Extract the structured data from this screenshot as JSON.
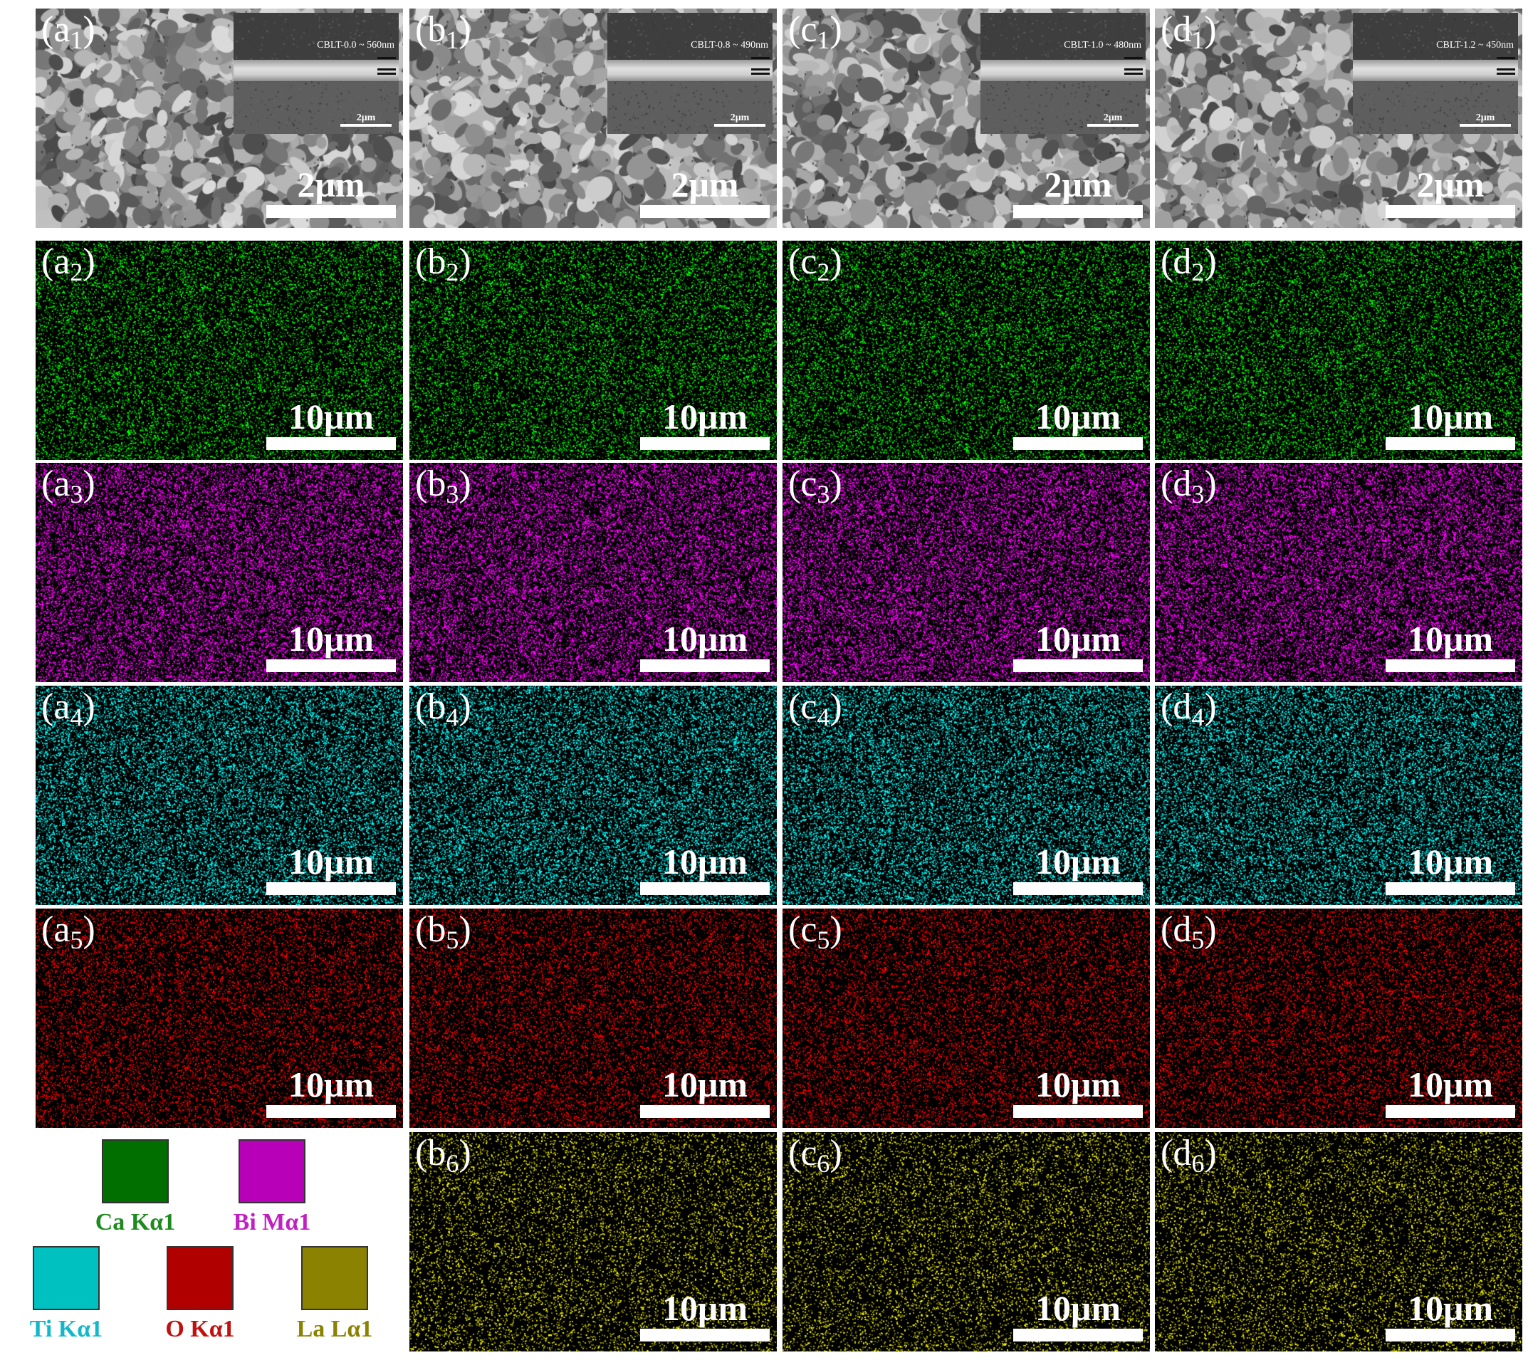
{
  "colors": {
    "sem": "#8a8a8a",
    "ca": "#00c800",
    "bi": "#d400d4",
    "ti": "#00d0d0",
    "o": "#e00000",
    "la": "#c8c800"
  },
  "columns": [
    "a",
    "b",
    "c",
    "d"
  ],
  "rows": [
    {
      "type": "sem",
      "cells": [
        {
          "label_letter": "(a",
          "label_sub": "1",
          "label_close": ")",
          "scale": "2μm",
          "inset_caption": "CBLT-0.0 ~ 560nm",
          "inset_scale": "2μm"
        },
        {
          "label_letter": "(b",
          "label_sub": "1",
          "label_close": ")",
          "scale": "2μm",
          "inset_caption": "CBLT-0.8 ~ 490nm",
          "inset_scale": "2μm"
        },
        {
          "label_letter": "(c",
          "label_sub": "1",
          "label_close": ")",
          "scale": "2μm",
          "inset_caption": "CBLT-1.0 ~ 480nm",
          "inset_scale": "2μm"
        },
        {
          "label_letter": "(d",
          "label_sub": "1",
          "label_close": ")",
          "scale": "2μm",
          "inset_caption": "CBLT-1.2 ~ 450nm",
          "inset_scale": "2μm"
        }
      ]
    },
    {
      "type": "ca",
      "cells": [
        {
          "label_letter": "(a",
          "label_sub": "2",
          "label_close": ")",
          "scale": "10μm"
        },
        {
          "label_letter": "(b",
          "label_sub": "2",
          "label_close": ")",
          "scale": "10μm"
        },
        {
          "label_letter": "(c",
          "label_sub": "2",
          "label_close": ")",
          "scale": "10μm"
        },
        {
          "label_letter": "(d",
          "label_sub": "2",
          "label_close": ")",
          "scale": "10μm"
        }
      ]
    },
    {
      "type": "bi",
      "cells": [
        {
          "label_letter": "(a",
          "label_sub": "3",
          "label_close": ")",
          "scale": "10μm"
        },
        {
          "label_letter": "(b",
          "label_sub": "3",
          "label_close": ")",
          "scale": "10μm"
        },
        {
          "label_letter": "(c",
          "label_sub": "3",
          "label_close": ")",
          "scale": "10μm"
        },
        {
          "label_letter": "(d",
          "label_sub": "3",
          "label_close": ")",
          "scale": "10μm"
        }
      ]
    },
    {
      "type": "ti",
      "cells": [
        {
          "label_letter": "(a",
          "label_sub": "4",
          "label_close": ")",
          "scale": "10μm"
        },
        {
          "label_letter": "(b",
          "label_sub": "4",
          "label_close": ")",
          "scale": "10μm"
        },
        {
          "label_letter": "(c",
          "label_sub": "4",
          "label_close": ")",
          "scale": "10μm"
        },
        {
          "label_letter": "(d",
          "label_sub": "4",
          "label_close": ")",
          "scale": "10μm"
        }
      ]
    },
    {
      "type": "o",
      "cells": [
        {
          "label_letter": "(a",
          "label_sub": "5",
          "label_close": ")",
          "scale": "10μm"
        },
        {
          "label_letter": "(b",
          "label_sub": "5",
          "label_close": ")",
          "scale": "10μm"
        },
        {
          "label_letter": "(c",
          "label_sub": "5",
          "label_close": ")",
          "scale": "10μm"
        },
        {
          "label_letter": "(d",
          "label_sub": "5",
          "label_close": ")",
          "scale": "10μm"
        }
      ]
    },
    {
      "type": "la",
      "cells": [
        null,
        {
          "label_letter": "(b",
          "label_sub": "6",
          "label_close": ")",
          "scale": "10μm"
        },
        {
          "label_letter": "(c",
          "label_sub": "6",
          "label_close": ")",
          "scale": "10μm"
        },
        {
          "label_letter": "(d",
          "label_sub": "6",
          "label_close": ")",
          "scale": "10μm"
        }
      ]
    }
  ],
  "legend": {
    "items": [
      {
        "label": "Ca Kα1",
        "swatch": "#006f00",
        "text_color": "#1f8a1f"
      },
      {
        "label": "Bi Mα1",
        "swatch": "#b800b8",
        "text_color": "#c020c0"
      },
      {
        "label": "Ti Kα1",
        "swatch": "#00c0c0",
        "text_color": "#10b8c8"
      },
      {
        "label": "O Kα1",
        "swatch": "#b00000",
        "text_color": "#c01010"
      },
      {
        "label": "La Lα1",
        "swatch": "#8a8200",
        "text_color": "#8a8200"
      }
    ]
  }
}
